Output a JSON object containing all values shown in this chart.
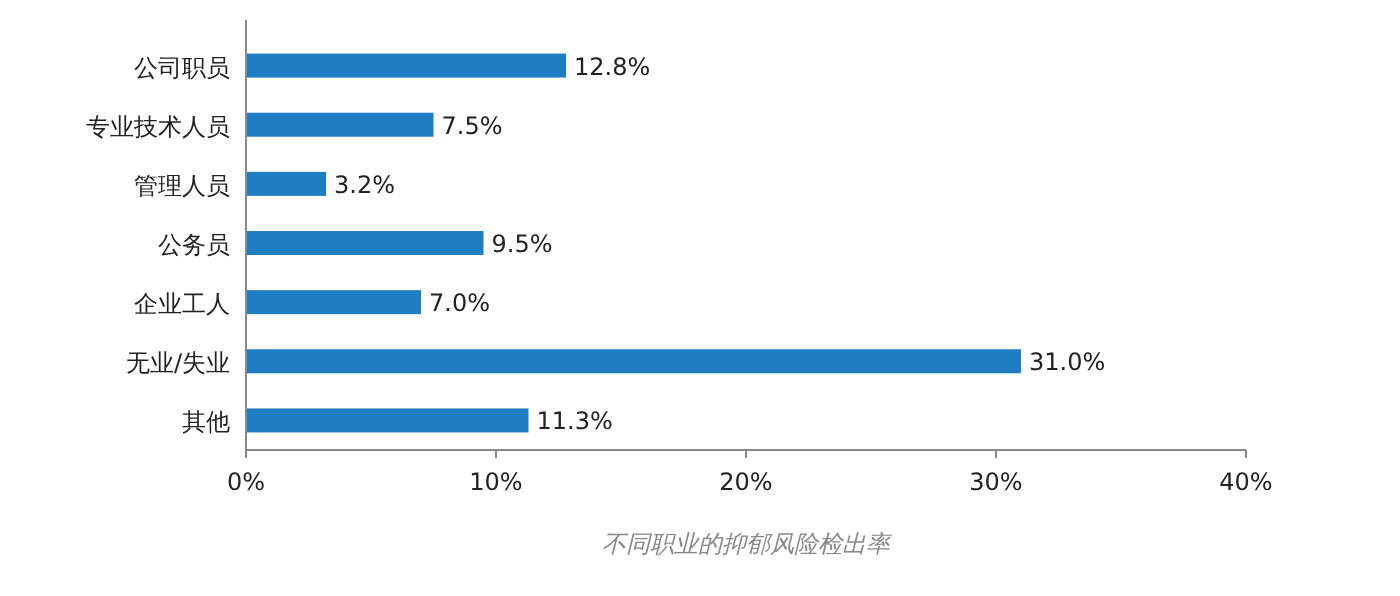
{
  "chart_data": {
    "type": "bar",
    "orientation": "horizontal",
    "title": "不同职业的抑郁风险检出率",
    "categories": [
      "公司职员",
      "专业技术人员",
      "管理人员",
      "公务员",
      "企业工人",
      "无业/失业",
      "其他"
    ],
    "values": [
      12.8,
      7.5,
      3.2,
      9.5,
      7.0,
      31.0,
      11.3
    ],
    "value_labels": [
      "12.8%",
      "7.5%",
      "3.2%",
      "9.5%",
      "7.0%",
      "31.0%",
      "11.3%"
    ],
    "color": "#1f7dc4",
    "xlim": [
      0,
      40
    ],
    "xticks": [
      {
        "value": 0,
        "label": "0%"
      },
      {
        "value": 10,
        "label": "10%"
      },
      {
        "value": 20,
        "label": "20%"
      },
      {
        "value": 30,
        "label": "30%"
      },
      {
        "value": 40,
        "label": "40%"
      }
    ],
    "grid": false
  }
}
